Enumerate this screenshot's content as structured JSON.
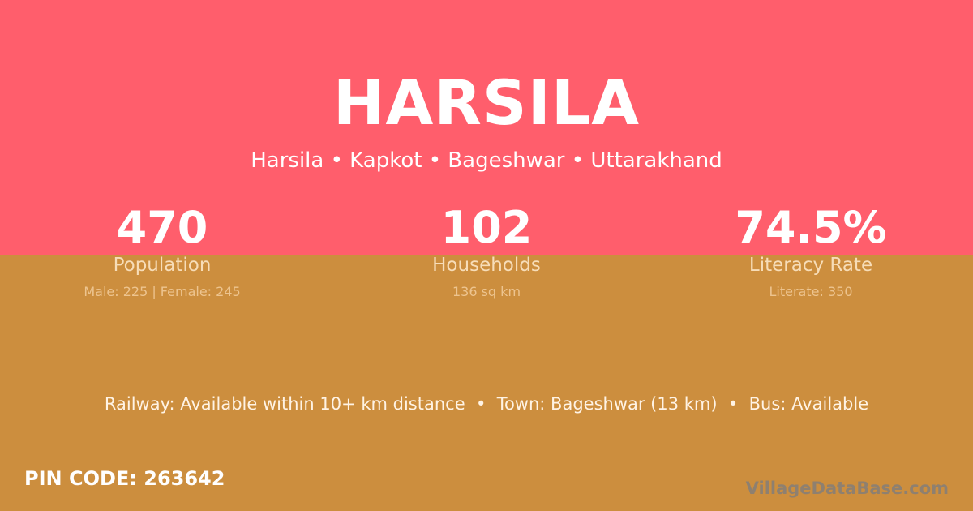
{
  "colors": {
    "top": "#FF5E6C",
    "bottom": "#CC8E3E"
  },
  "title": "HARSILA",
  "location": "Harsila • Kapkot • Bageshwar • Uttarakhand",
  "stats": [
    {
      "value": "470",
      "label": "Population",
      "detail": "Male: 225 | Female: 245"
    },
    {
      "value": "102",
      "label": "Households",
      "detail": "136 sq km"
    },
    {
      "value": "74.5%",
      "label": "Literacy Rate",
      "detail": "Literate: 350"
    }
  ],
  "connectivity": "Railway: Available within 10+ km distance  •  Town: Bageshwar (13 km)  •  Bus: Available",
  "pin_code": "PIN CODE: 263642",
  "brand": "VillageDataBase.com"
}
